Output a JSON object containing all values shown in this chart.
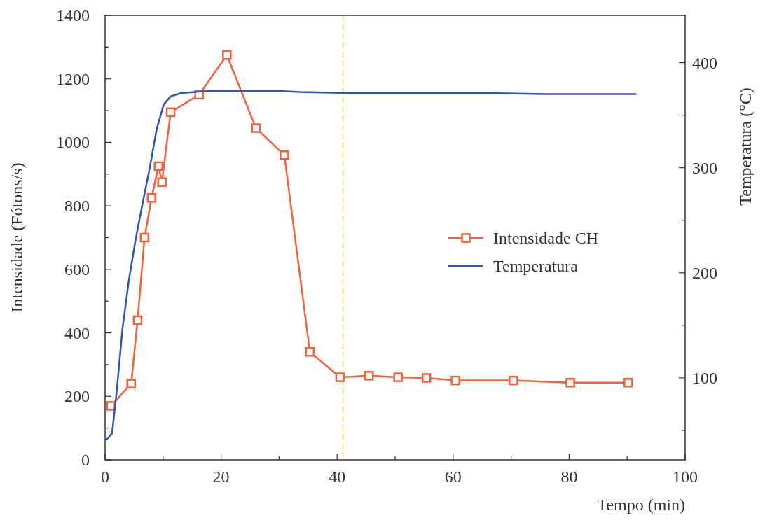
{
  "chart_data": {
    "type": "line",
    "xlabel": "Tempo (min)",
    "ylabel": "Intensidade (Fótons/s)",
    "y2label": "Temperatura (°C)",
    "xlim": [
      0,
      100
    ],
    "xticks": [
      0,
      {
        "value": 10,
        "label": null
      },
      20,
      {
        "value": 30,
        "label": null
      },
      40,
      {
        "value": 50,
        "label": null
      },
      60,
      {
        "value": 70,
        "label": null
      },
      80,
      {
        "value": 90,
        "label": null
      },
      100
    ],
    "ylim": [
      0,
      1400
    ],
    "yticks": [
      0,
      {
        "value": 100,
        "label": null
      },
      200,
      {
        "value": 300,
        "label": null
      },
      400,
      {
        "value": 500,
        "label": null
      },
      600,
      {
        "value": 700,
        "label": null
      },
      800,
      {
        "value": 900,
        "label": null
      },
      1000,
      {
        "value": 1100,
        "label": null
      },
      1200,
      {
        "value": 1300,
        "label": null
      },
      1400
    ],
    "y2lim": [
      22,
      445
    ],
    "y2ticks": [
      {
        "value": 50,
        "label": null
      },
      100,
      {
        "value": 150,
        "label": null
      },
      200,
      {
        "value": 250,
        "label": null
      },
      300,
      {
        "value": 350,
        "label": null
      },
      400
    ],
    "legend": "right",
    "grid": false,
    "ref_lines": [
      {
        "axis": "x",
        "value": 41,
        "color": "#f5e300",
        "line_style": "dashed"
      }
    ],
    "series": [
      {
        "name": "Intensidade CH",
        "color": "#f4613a",
        "marker": "square",
        "x": [
          1,
          4.5,
          5.6,
          6.8,
          8,
          9.2,
          9.8,
          11.3,
          16.2,
          21,
          26,
          30.9,
          35.3,
          40.5,
          45.5,
          50.5,
          55.4,
          60.4,
          70.4,
          80.2,
          90.2
        ],
        "values": [
          170,
          240,
          440,
          700,
          825,
          925,
          875,
          1095,
          1150,
          1275,
          1045,
          960,
          340,
          260,
          265,
          260,
          258,
          250,
          250,
          243,
          243
        ]
      },
      {
        "name": "Temperatura",
        "color": "#2f55b0",
        "marker": "none",
        "axis": "y2",
        "x": [
          0.2,
          1.2,
          2,
          3,
          4.1,
          5.3,
          6.5,
          7.7,
          8.9,
          10.1,
          11.3,
          13.1,
          17.9,
          30,
          33.6,
          42,
          66,
          76,
          91.6
        ],
        "values": [
          41,
          47,
          87,
          147,
          193,
          233,
          267,
          300,
          337,
          360,
          368,
          371,
          373,
          373,
          372,
          371,
          371,
          370,
          370
        ]
      }
    ]
  }
}
